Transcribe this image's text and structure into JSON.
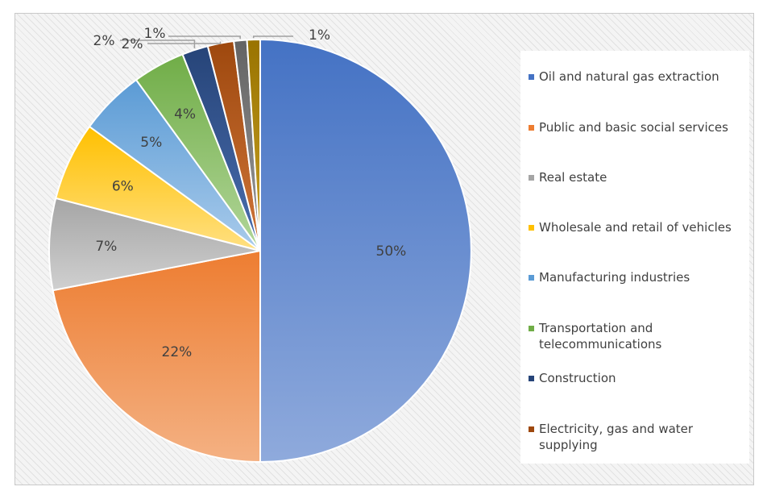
{
  "chart_data": {
    "type": "pie",
    "title": "",
    "start_angle_deg": 0,
    "slices": [
      {
        "label": "Oil and natural gas extraction",
        "value": 50,
        "display": "50%",
        "color": "#4472C4",
        "color_light": "#8FAADC"
      },
      {
        "label": "Public and basic social services",
        "value": 22,
        "display": "22%",
        "color": "#ED7D31",
        "color_light": "#F4B183"
      },
      {
        "label": "Real estate",
        "value": 7,
        "display": "7%",
        "color": "#A5A5A5",
        "color_light": "#D0D0D0"
      },
      {
        "label": "Wholesale and retail of vehicles",
        "value": 6,
        "display": "6%",
        "color": "#FFC000",
        "color_light": "#FFE082"
      },
      {
        "label": "Manufacturing industries",
        "value": 5,
        "display": "5%",
        "color": "#5B9BD5",
        "color_light": "#A9CBEB"
      },
      {
        "label": "Transportation and telecommunications",
        "value": 4,
        "display": "4%",
        "color": "#70AD47",
        "color_light": "#B2D69A"
      },
      {
        "label": "Construction",
        "value": 2,
        "display": "2%",
        "color": "#264478",
        "color_light": "#4A6EAF"
      },
      {
        "label": "Electricity, gas and water supplying",
        "value": 2,
        "display": "2%",
        "color": "#9E480E",
        "color_light": "#D0763A"
      },
      {
        "label": "",
        "value": 1,
        "display": "1%",
        "color": "#636363",
        "color_light": "#9A9A9A"
      },
      {
        "label": "",
        "value": 1,
        "display": "1%",
        "color": "#997300",
        "color_light": "#C9A227"
      }
    ],
    "legend_position": "right"
  }
}
